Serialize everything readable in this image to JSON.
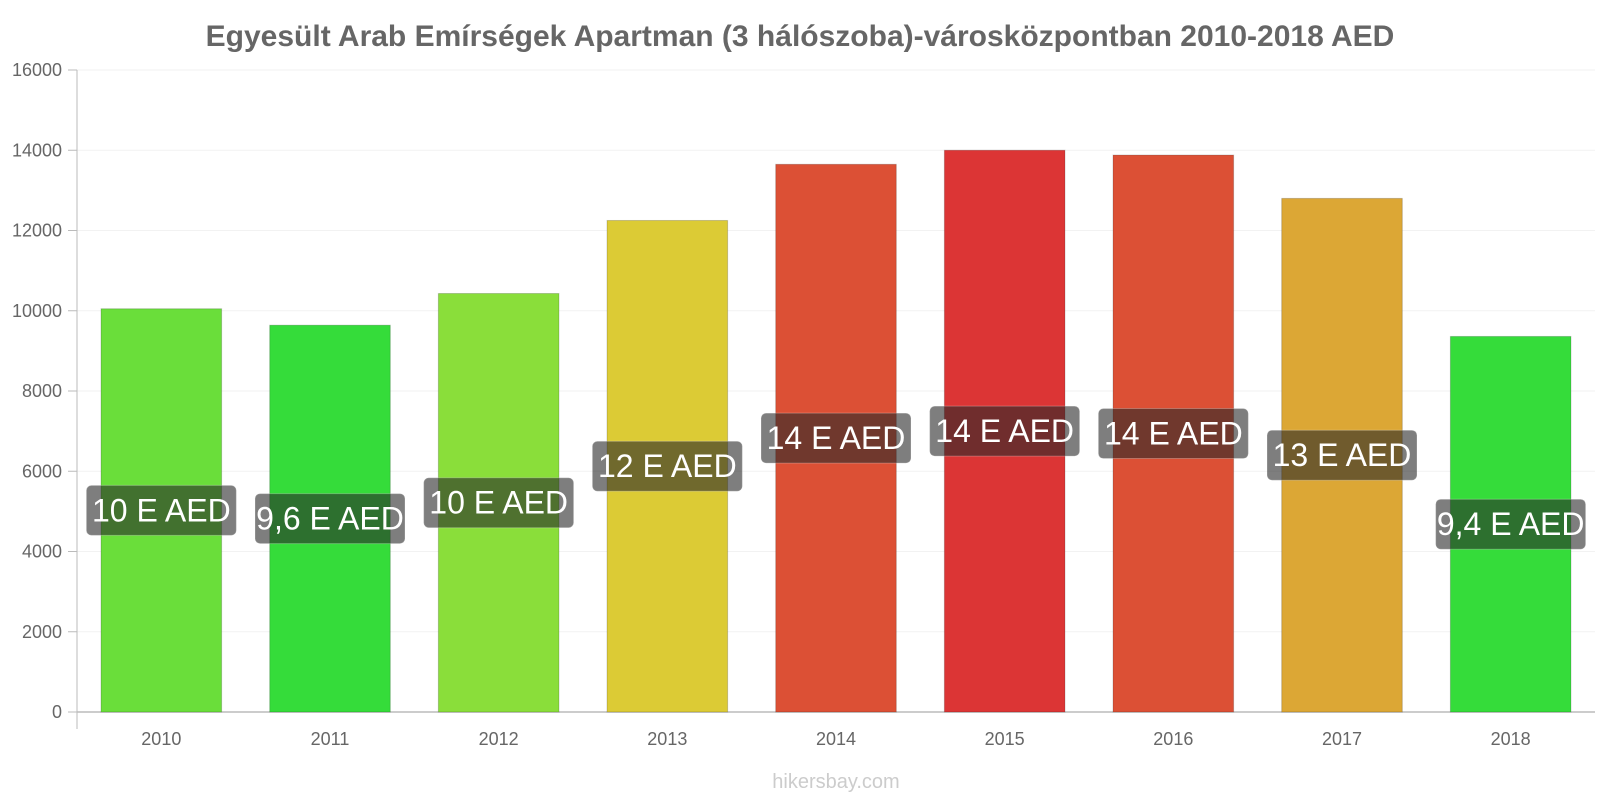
{
  "chart_data": {
    "type": "bar",
    "title": "Egyesült Arab Emírségek Apartman (3 hálószoba)-városközpontban 2010-2018 AED",
    "xlabel": "",
    "ylabel": "",
    "ylim": [
      0,
      16000
    ],
    "yticks": [
      0,
      2000,
      4000,
      6000,
      8000,
      10000,
      12000,
      14000,
      16000
    ],
    "categories": [
      "2010",
      "2011",
      "2012",
      "2013",
      "2014",
      "2015",
      "2016",
      "2017",
      "2018"
    ],
    "values": [
      10050,
      9640,
      10430,
      12250,
      13650,
      14000,
      13880,
      12800,
      9360
    ],
    "labels": [
      "10 E AED",
      "9,6 E AED",
      "10 E AED",
      "12 E AED",
      "14 E AED",
      "14 E AED",
      "14 E AED",
      "13 E AED",
      "9,4 E AED"
    ],
    "colors": [
      "#6ade3a",
      "#35dc3a",
      "#8ade3a",
      "#dccb35",
      "#dc5035",
      "#dc3535",
      "#dc5035",
      "#dca735",
      "#35dc3a"
    ],
    "grid": true,
    "legend": "none"
  },
  "footer": "hikersbay.com"
}
